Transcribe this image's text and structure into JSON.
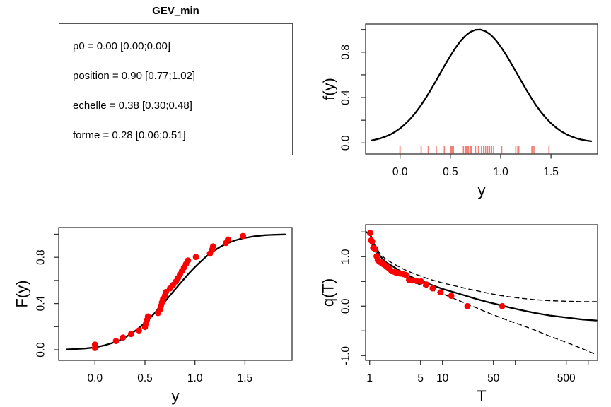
{
  "text_panel": {
    "title": "GEV_min",
    "lines": [
      "p0 = 0.00 [0.00;0.00]",
      "position = 0.90 [0.77;1.02]",
      "echelle = 0.38 [0.30;0.48]",
      "forme = 0.28 [0.06;0.51]"
    ]
  },
  "colors": {
    "points": "#ff0000",
    "rug": "#f28076",
    "curve": "#000000",
    "frame": "#333333"
  },
  "chart_data": [
    {
      "id": "density",
      "type": "line",
      "title": "",
      "xlabel": "y",
      "ylabel": "f(y)",
      "xlim": [
        -0.34,
        1.96
      ],
      "ylim": [
        -0.1,
        1.05
      ],
      "grid": false,
      "legend": "none",
      "xticks": [
        {
          "v": 0,
          "label": "0.0"
        },
        {
          "v": 0.5,
          "label": "0.5"
        },
        {
          "v": 1,
          "label": "1.0"
        },
        {
          "v": 1.5,
          "label": "1.5"
        }
      ],
      "yticks": [
        {
          "v": 0,
          "label": "0.0"
        },
        {
          "v": 0.2,
          "label": ""
        },
        {
          "v": 0.4,
          "label": "0.4"
        },
        {
          "v": 0.6,
          "label": ""
        },
        {
          "v": 0.8,
          "label": "0.8"
        },
        {
          "v": 1,
          "label": ""
        }
      ],
      "series": [
        {
          "name": "fitted-density",
          "style": "solid",
          "width": 2.3,
          "points": [
            [
              -0.28,
              0.023
            ],
            [
              -0.25,
              0.028
            ],
            [
              -0.2,
              0.039
            ],
            [
              -0.15,
              0.054
            ],
            [
              -0.1,
              0.073
            ],
            [
              -0.05,
              0.098
            ],
            [
              0,
              0.128
            ],
            [
              0.05,
              0.166
            ],
            [
              0.1,
              0.21
            ],
            [
              0.15,
              0.262
            ],
            [
              0.2,
              0.322
            ],
            [
              0.25,
              0.388
            ],
            [
              0.3,
              0.46
            ],
            [
              0.35,
              0.536
            ],
            [
              0.4,
              0.614
            ],
            [
              0.45,
              0.693
            ],
            [
              0.5,
              0.768
            ],
            [
              0.55,
              0.837
            ],
            [
              0.6,
              0.897
            ],
            [
              0.65,
              0.945
            ],
            [
              0.7,
              0.979
            ],
            [
              0.75,
              0.997
            ],
            [
              0.8,
              0.999
            ],
            [
              0.85,
              0.984
            ],
            [
              0.9,
              0.953
            ],
            [
              0.95,
              0.907
            ],
            [
              1,
              0.849
            ],
            [
              1.05,
              0.782
            ],
            [
              1.1,
              0.708
            ],
            [
              1.15,
              0.63
            ],
            [
              1.2,
              0.552
            ],
            [
              1.25,
              0.475
            ],
            [
              1.3,
              0.402
            ],
            [
              1.35,
              0.334
            ],
            [
              1.4,
              0.273
            ],
            [
              1.45,
              0.22
            ],
            [
              1.5,
              0.174
            ],
            [
              1.55,
              0.135
            ],
            [
              1.6,
              0.103
            ],
            [
              1.65,
              0.078
            ],
            [
              1.7,
              0.058
            ],
            [
              1.75,
              0.042
            ],
            [
              1.8,
              0.03
            ],
            [
              1.85,
              0.021
            ],
            [
              1.9,
              0.015
            ]
          ]
        }
      ],
      "rug": [
        0,
        0,
        0.21,
        0.28,
        0.36,
        0.44,
        0.5,
        0.51,
        0.52,
        0.53,
        0.63,
        0.65,
        0.66,
        0.67,
        0.68,
        0.7,
        0.71,
        0.75,
        0.78,
        0.81,
        0.83,
        0.85,
        0.87,
        0.89,
        0.91,
        0.93,
        1.01,
        1.15,
        1.17,
        1.18,
        1.31,
        1.33,
        1.48
      ]
    },
    {
      "id": "cdf",
      "type": "scatter",
      "title": "",
      "xlabel": "y",
      "ylabel": "F(y)",
      "xlim": [
        -0.36,
        1.97
      ],
      "ylim": [
        -0.06,
        1.06
      ],
      "grid": false,
      "legend": "none",
      "xticks": [
        {
          "v": 0,
          "label": "0.0"
        },
        {
          "v": 0.5,
          "label": "0.5"
        },
        {
          "v": 1,
          "label": "1.0"
        },
        {
          "v": 1.5,
          "label": "1.5"
        }
      ],
      "yticks": [
        {
          "v": 0,
          "label": "0.0"
        },
        {
          "v": 0.2,
          "label": ""
        },
        {
          "v": 0.4,
          "label": "0.4"
        },
        {
          "v": 0.6,
          "label": ""
        },
        {
          "v": 0.8,
          "label": "0.8"
        },
        {
          "v": 1,
          "label": ""
        }
      ],
      "series": [
        {
          "name": "fitted-cdf",
          "style": "solid",
          "width": 2.3,
          "points": [
            [
              -0.28,
              0.003
            ],
            [
              -0.2,
              0.006
            ],
            [
              -0.1,
              0.011
            ],
            [
              0,
              0.021
            ],
            [
              0.1,
              0.039
            ],
            [
              0.2,
              0.066
            ],
            [
              0.25,
              0.084
            ],
            [
              0.3,
              0.106
            ],
            [
              0.35,
              0.132
            ],
            [
              0.4,
              0.162
            ],
            [
              0.45,
              0.196
            ],
            [
              0.5,
              0.234
            ],
            [
              0.55,
              0.275
            ],
            [
              0.6,
              0.32
            ],
            [
              0.65,
              0.368
            ],
            [
              0.7,
              0.418
            ],
            [
              0.75,
              0.469
            ],
            [
              0.8,
              0.521
            ],
            [
              0.85,
              0.572
            ],
            [
              0.9,
              0.622
            ],
            [
              0.95,
              0.671
            ],
            [
              1,
              0.716
            ],
            [
              1.05,
              0.758
            ],
            [
              1.1,
              0.797
            ],
            [
              1.15,
              0.832
            ],
            [
              1.2,
              0.862
            ],
            [
              1.25,
              0.889
            ],
            [
              1.3,
              0.912
            ],
            [
              1.35,
              0.931
            ],
            [
              1.4,
              0.946
            ],
            [
              1.45,
              0.959
            ],
            [
              1.5,
              0.969
            ],
            [
              1.6,
              0.983
            ],
            [
              1.7,
              0.992
            ],
            [
              1.8,
              0.996
            ],
            [
              1.9,
              0.998
            ]
          ]
        }
      ],
      "scatter": [
        [
          0,
          0.015
        ],
        [
          0,
          0.045
        ],
        [
          0.21,
          0.076
        ],
        [
          0.28,
          0.106
        ],
        [
          0.36,
          0.136
        ],
        [
          0.44,
          0.167
        ],
        [
          0.5,
          0.197
        ],
        [
          0.51,
          0.227
        ],
        [
          0.52,
          0.258
        ],
        [
          0.53,
          0.288
        ],
        [
          0.63,
          0.318
        ],
        [
          0.65,
          0.348
        ],
        [
          0.66,
          0.379
        ],
        [
          0.67,
          0.409
        ],
        [
          0.68,
          0.439
        ],
        [
          0.7,
          0.47
        ],
        [
          0.71,
          0.5
        ],
        [
          0.75,
          0.53
        ],
        [
          0.78,
          0.561
        ],
        [
          0.81,
          0.591
        ],
        [
          0.83,
          0.621
        ],
        [
          0.85,
          0.652
        ],
        [
          0.87,
          0.682
        ],
        [
          0.89,
          0.712
        ],
        [
          0.91,
          0.742
        ],
        [
          0.93,
          0.773
        ],
        [
          1.01,
          0.803
        ],
        [
          1.15,
          0.833
        ],
        [
          1.17,
          0.864
        ],
        [
          1.18,
          0.894
        ],
        [
          1.31,
          0.924
        ],
        [
          1.33,
          0.955
        ],
        [
          1.48,
          0.985
        ]
      ]
    },
    {
      "id": "return",
      "type": "line",
      "title": "",
      "xlabel": "T",
      "ylabel": "q(T)",
      "xscale": "log",
      "xlim": [
        0.88,
        1350
      ],
      "ylim": [
        -1.1,
        1.65
      ],
      "grid": false,
      "legend": "none",
      "xticks": [
        {
          "v": 1,
          "label": "1"
        },
        {
          "v": 5,
          "label": "5"
        },
        {
          "v": 10,
          "label": "10"
        },
        {
          "v": 50,
          "label": "50"
        },
        {
          "v": 100,
          "label": ""
        },
        {
          "v": 500,
          "label": "500"
        },
        {
          "v": 1000,
          "label": ""
        }
      ],
      "yticks": [
        {
          "v": -1,
          "label": "-1.0"
        },
        {
          "v": -0.5,
          "label": ""
        },
        {
          "v": 0,
          "label": "0.0"
        },
        {
          "v": 0.5,
          "label": ""
        },
        {
          "v": 1,
          "label": "1.0"
        },
        {
          "v": 1.5,
          "label": ""
        }
      ],
      "series": [
        {
          "name": "quantile-estimate",
          "style": "solid",
          "width": 2.3,
          "points": [
            [
              0.89,
              1.5
            ],
            [
              1.02,
              1.45
            ],
            [
              1.1,
              1.29
            ],
            [
              1.2,
              1.16
            ],
            [
              1.35,
              1.04
            ],
            [
              1.5,
              0.96
            ],
            [
              1.7,
              0.88
            ],
            [
              2,
              0.82
            ],
            [
              2.5,
              0.73
            ],
            [
              3,
              0.66
            ],
            [
              4,
              0.57
            ],
            [
              5,
              0.52
            ],
            [
              6.5,
              0.45
            ],
            [
              8,
              0.4
            ],
            [
              10,
              0.35
            ],
            [
              13,
              0.3
            ],
            [
              17,
              0.25
            ],
            [
              22,
              0.2
            ],
            [
              30,
              0.14
            ],
            [
              40,
              0.09
            ],
            [
              55,
              0.04
            ],
            [
              80,
              -0.02
            ],
            [
              120,
              -0.08
            ],
            [
              190,
              -0.14
            ],
            [
              300,
              -0.19
            ],
            [
              500,
              -0.23
            ],
            [
              830,
              -0.27
            ],
            [
              1300,
              -0.29
            ]
          ]
        },
        {
          "name": "upper-confidence-bound",
          "style": "dashed",
          "width": 1.4,
          "points": [
            [
              1.05,
              1.42
            ],
            [
              1.1,
              1.33
            ],
            [
              1.2,
              1.21
            ],
            [
              1.35,
              1.09
            ],
            [
              1.5,
              1.01
            ],
            [
              1.7,
              0.94
            ],
            [
              2,
              0.88
            ],
            [
              2.5,
              0.8
            ],
            [
              3,
              0.74
            ],
            [
              4,
              0.66
            ],
            [
              5,
              0.61
            ],
            [
              6.5,
              0.55
            ],
            [
              8,
              0.51
            ],
            [
              10,
              0.47
            ],
            [
              13,
              0.43
            ],
            [
              17,
              0.39
            ],
            [
              22,
              0.35
            ],
            [
              30,
              0.31
            ],
            [
              40,
              0.27
            ],
            [
              55,
              0.23
            ],
            [
              80,
              0.19
            ],
            [
              120,
              0.16
            ],
            [
              190,
              0.13
            ],
            [
              300,
              0.11
            ],
            [
              500,
              0.1
            ],
            [
              830,
              0.09
            ],
            [
              1300,
              0.09
            ]
          ]
        },
        {
          "name": "lower-confidence-bound",
          "style": "dashed",
          "width": 1.4,
          "points": [
            [
              1.05,
              1.28
            ],
            [
              1.1,
              1.22
            ],
            [
              1.2,
              1.1
            ],
            [
              1.35,
              0.98
            ],
            [
              1.5,
              0.9
            ],
            [
              1.7,
              0.82
            ],
            [
              2,
              0.75
            ],
            [
              2.5,
              0.66
            ],
            [
              3,
              0.59
            ],
            [
              4,
              0.49
            ],
            [
              5,
              0.43
            ],
            [
              6.5,
              0.36
            ],
            [
              8,
              0.3
            ],
            [
              10,
              0.25
            ],
            [
              13,
              0.18
            ],
            [
              17,
              0.11
            ],
            [
              22,
              0.04
            ],
            [
              30,
              -0.04
            ],
            [
              40,
              -0.12
            ],
            [
              55,
              -0.2
            ],
            [
              80,
              -0.29
            ],
            [
              120,
              -0.38
            ],
            [
              190,
              -0.49
            ],
            [
              300,
              -0.61
            ],
            [
              500,
              -0.73
            ],
            [
              830,
              -0.86
            ],
            [
              1300,
              -0.98
            ]
          ]
        }
      ],
      "scatter": [
        [
          1.015,
          1.48
        ],
        [
          1.048,
          1.33
        ],
        [
          1.082,
          1.31
        ],
        [
          1.119,
          1.18
        ],
        [
          1.158,
          1.17
        ],
        [
          1.2,
          1.15
        ],
        [
          1.245,
          1.01
        ],
        [
          1.294,
          0.93
        ],
        [
          1.347,
          0.91
        ],
        [
          1.404,
          0.89
        ],
        [
          1.467,
          0.87
        ],
        [
          1.535,
          0.85
        ],
        [
          1.61,
          0.83
        ],
        [
          1.692,
          0.81
        ],
        [
          1.784,
          0.78
        ],
        [
          1.886,
          0.75
        ],
        [
          2,
          0.71
        ],
        [
          2.129,
          0.7
        ],
        [
          2.276,
          0.68
        ],
        [
          2.444,
          0.67
        ],
        [
          2.64,
          0.66
        ],
        [
          2.87,
          0.65
        ],
        [
          3.143,
          0.63
        ],
        [
          3.474,
          0.53
        ],
        [
          3.882,
          0.52
        ],
        [
          4.4,
          0.51
        ],
        [
          5.077,
          0.5
        ],
        [
          6,
          0.44
        ],
        [
          7.333,
          0.36
        ],
        [
          9.429,
          0.28
        ],
        [
          13.2,
          0.21
        ],
        [
          22,
          0
        ],
        [
          66,
          0
        ]
      ]
    }
  ]
}
